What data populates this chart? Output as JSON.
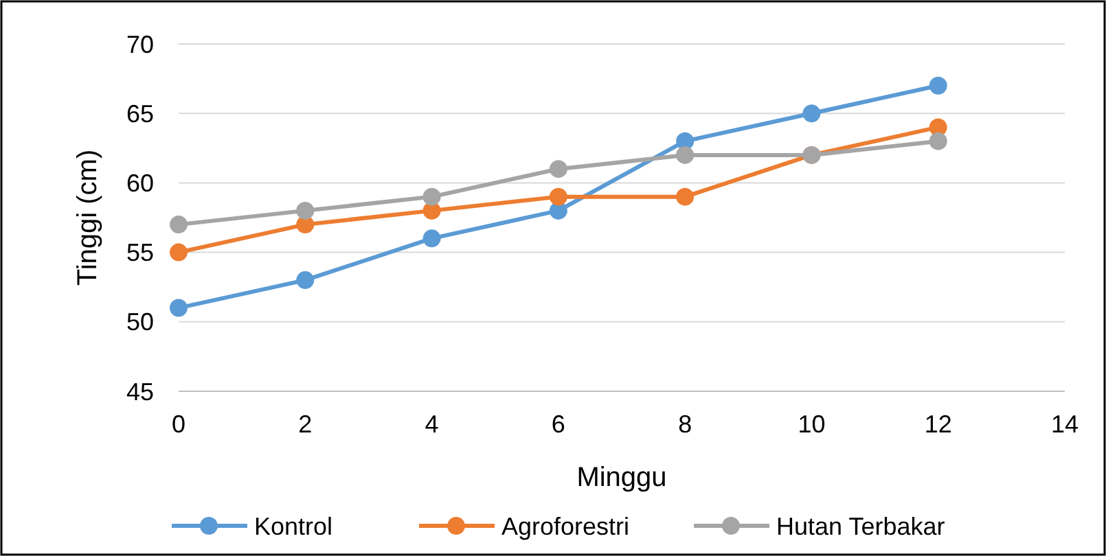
{
  "chart_data": {
    "type": "line",
    "xlabel": "Minggu",
    "ylabel": "Tinggi (cm)",
    "x": [
      0,
      2,
      4,
      6,
      8,
      10,
      12
    ],
    "series": [
      {
        "name": "Kontrol",
        "color": "#5b9bd5",
        "values": [
          51,
          53,
          56,
          58,
          63,
          65,
          67
        ]
      },
      {
        "name": "Agroforestri",
        "color": "#ed7d31",
        "values": [
          55,
          57,
          58,
          59,
          59,
          62,
          64
        ]
      },
      {
        "name": "Hutan Terbakar",
        "color": "#a5a5a5",
        "values": [
          57,
          58,
          59,
          61,
          62,
          62,
          63
        ]
      }
    ],
    "xlim": [
      0,
      14
    ],
    "xticks": [
      0,
      2,
      4,
      6,
      8,
      10,
      12,
      14
    ],
    "ylim": [
      45,
      70
    ],
    "yticks": [
      45,
      50,
      55,
      60,
      65,
      70
    ],
    "grid": "y",
    "legend": "bottom",
    "marker": "circle",
    "line_style": "solid"
  }
}
